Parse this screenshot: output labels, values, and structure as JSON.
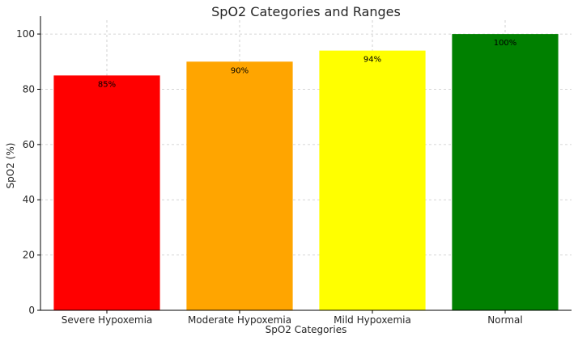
{
  "chart_data": {
    "type": "bar",
    "title": "SpO2 Categories and Ranges",
    "xlabel": "SpO2 Categories",
    "ylabel": "SpO2 (%)",
    "categories": [
      "Severe Hypoxemia",
      "Moderate Hypoxemia",
      "Mild Hypoxemia",
      "Normal"
    ],
    "values": [
      85,
      90,
      94,
      100
    ],
    "data_labels": [
      "85%",
      "90%",
      "94%",
      "100%"
    ],
    "colors": [
      "#ff0000",
      "#ffa500",
      "#ffff00",
      "#008000"
    ],
    "yticks": [
      0,
      20,
      40,
      60,
      80,
      100
    ],
    "ylim": [
      0,
      105
    ],
    "grid": true,
    "legend": "none"
  }
}
